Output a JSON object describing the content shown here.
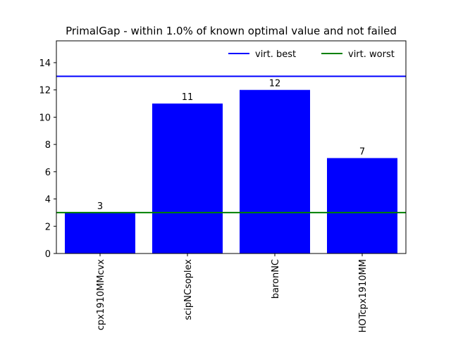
{
  "chart_data": {
    "type": "bar",
    "title": "PrimalGap - within 1.0% of known optimal value and not failed",
    "xlabel": "",
    "ylabel": "",
    "categories": [
      "cpx1910MMcvx",
      "scipNCsoplex",
      "baronNC",
      "HOTcpx1910MM"
    ],
    "values": [
      3,
      11,
      12,
      7
    ],
    "ylim": [
      0,
      15.6
    ],
    "yticks": [
      0,
      2,
      4,
      6,
      8,
      10,
      12,
      14
    ],
    "bar_color": "#0000ff",
    "reference_lines": [
      {
        "name": "virt. best",
        "value": 13,
        "color": "#0000ff"
      },
      {
        "name": "virt. worst",
        "value": 3,
        "color": "#008000"
      }
    ],
    "legend_position": "top-right",
    "grid": false
  }
}
